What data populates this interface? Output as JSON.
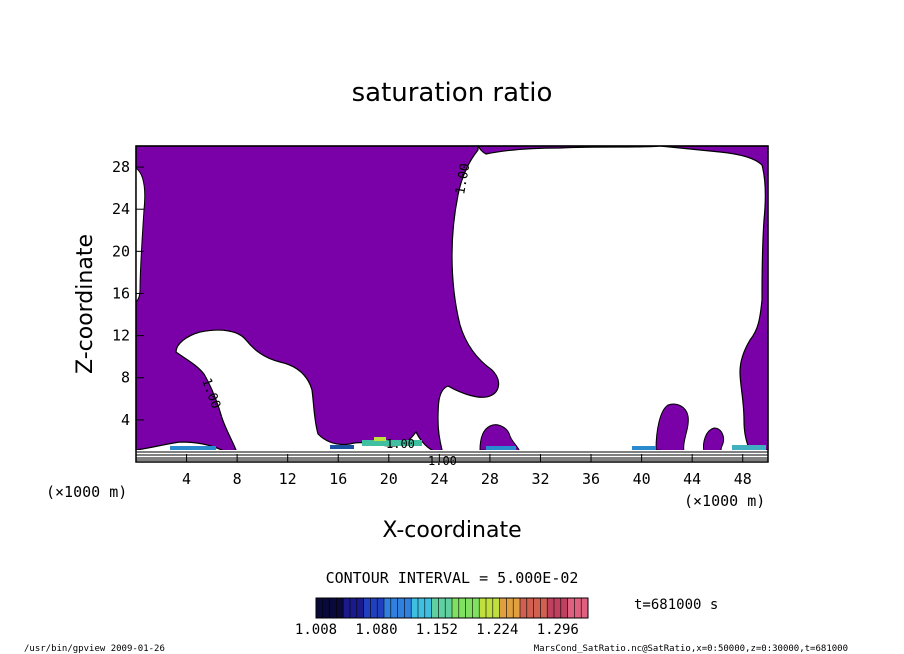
{
  "chart_data": {
    "type": "heatmap",
    "title": "saturation ratio",
    "xlabel": "X-coordinate",
    "ylabel": "Z-coordinate",
    "x_unit": "(×1000 m)",
    "z_unit": "(×1000 m)",
    "xlim": [
      0,
      50
    ],
    "ylim": [
      0,
      30
    ],
    "x_ticks": [
      "4",
      "8",
      "12",
      "16",
      "20",
      "24",
      "28",
      "32",
      "36",
      "40",
      "44",
      "48"
    ],
    "y_ticks": [
      "4",
      "8",
      "12",
      "16",
      "20",
      "24",
      "28"
    ],
    "contour_labels": [
      "1.00",
      "1.00",
      "1.00",
      "1.00"
    ],
    "contour_interval": "CONTOUR INTERVAL = 5.000E-02",
    "colorbar": {
      "ticks": [
        "1.008",
        "1.080",
        "1.152",
        "1.224",
        "1.296"
      ],
      "range": [
        1.008,
        1.332
      ],
      "colors": [
        "#0a0a3a",
        "#1a1a8a",
        "#2040c0",
        "#3080e0",
        "#40c0e0",
        "#60d0a0",
        "#80e060",
        "#c0e040",
        "#e0a040",
        "#d06050",
        "#c04060",
        "#e06080"
      ]
    },
    "colors": {
      "supersaturated_fill": "#7a00a8",
      "background": "#ffffff"
    },
    "time_label": "t=681000 s"
  },
  "footer": {
    "left": "/usr/bin/gpview  2009-01-26",
    "right": "MarsCond_SatRatio.nc@SatRatio,x=0:50000,z=0:30000,t=681000"
  }
}
